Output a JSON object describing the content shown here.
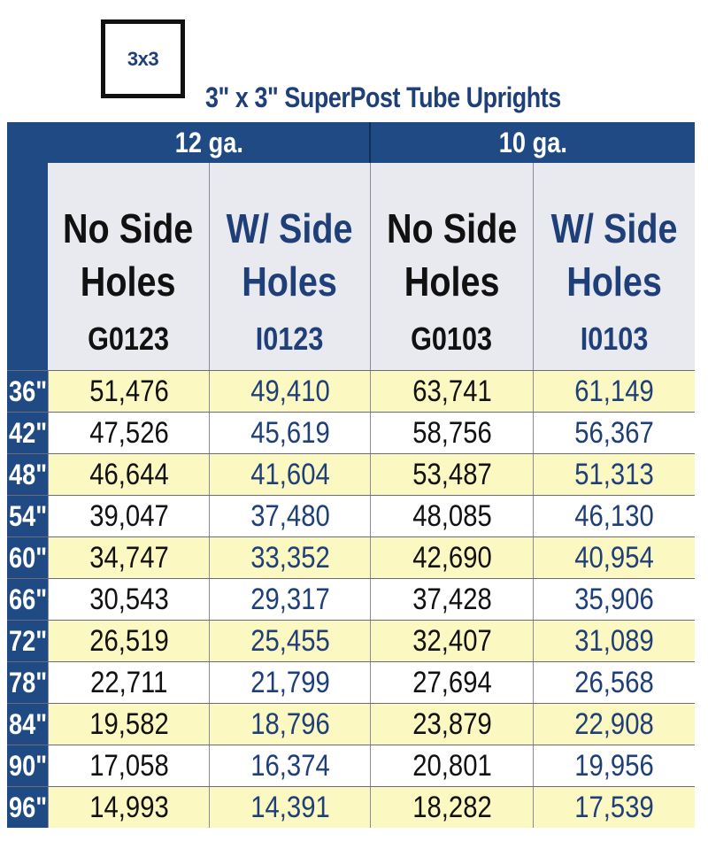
{
  "badge": "3x3",
  "title": "3\" x 3\" SuperPost Tube Uprights",
  "gauges": [
    "12 ga.",
    "10 ga."
  ],
  "columns": [
    {
      "title": "No Side\nHoles",
      "code": "G0123"
    },
    {
      "title": "W/ Side\nHoles",
      "code": "I0123"
    },
    {
      "title": "No Side\nHoles",
      "code": "G0103"
    },
    {
      "title": "W/ Side\nHoles",
      "code": "I0103"
    }
  ],
  "rows": [
    {
      "label": "36\"",
      "values": [
        "51,476",
        "49,410",
        "63,741",
        "61,149"
      ]
    },
    {
      "label": "42\"",
      "values": [
        "47,526",
        "45,619",
        "58,756",
        "56,367"
      ]
    },
    {
      "label": "48\"",
      "values": [
        "46,644",
        "41,604",
        "53,487",
        "51,313"
      ]
    },
    {
      "label": "54\"",
      "values": [
        "39,047",
        "37,480",
        "48,085",
        "46,130"
      ]
    },
    {
      "label": "60\"",
      "values": [
        "34,747",
        "33,352",
        "42,690",
        "40,954"
      ]
    },
    {
      "label": "66\"",
      "values": [
        "30,543",
        "29,317",
        "37,428",
        "35,906"
      ]
    },
    {
      "label": "72\"",
      "values": [
        "26,519",
        "25,455",
        "32,407",
        "31,089"
      ]
    },
    {
      "label": "78\"",
      "values": [
        "22,711",
        "21,799",
        "27,694",
        "26,568"
      ]
    },
    {
      "label": "84\"",
      "values": [
        "19,582",
        "18,796",
        "23,879",
        "22,908"
      ]
    },
    {
      "label": "90\"",
      "values": [
        "17,058",
        "16,374",
        "20,801",
        "19,956"
      ]
    },
    {
      "label": "96\"",
      "values": [
        "14,993",
        "14,391",
        "18,282",
        "17,539"
      ]
    }
  ],
  "colors": {
    "header_blue": "#1f4a84",
    "text_blue": "#1e3f78",
    "highlight_row": "#fcf8c2",
    "header_cell": "#e9e9f0"
  }
}
